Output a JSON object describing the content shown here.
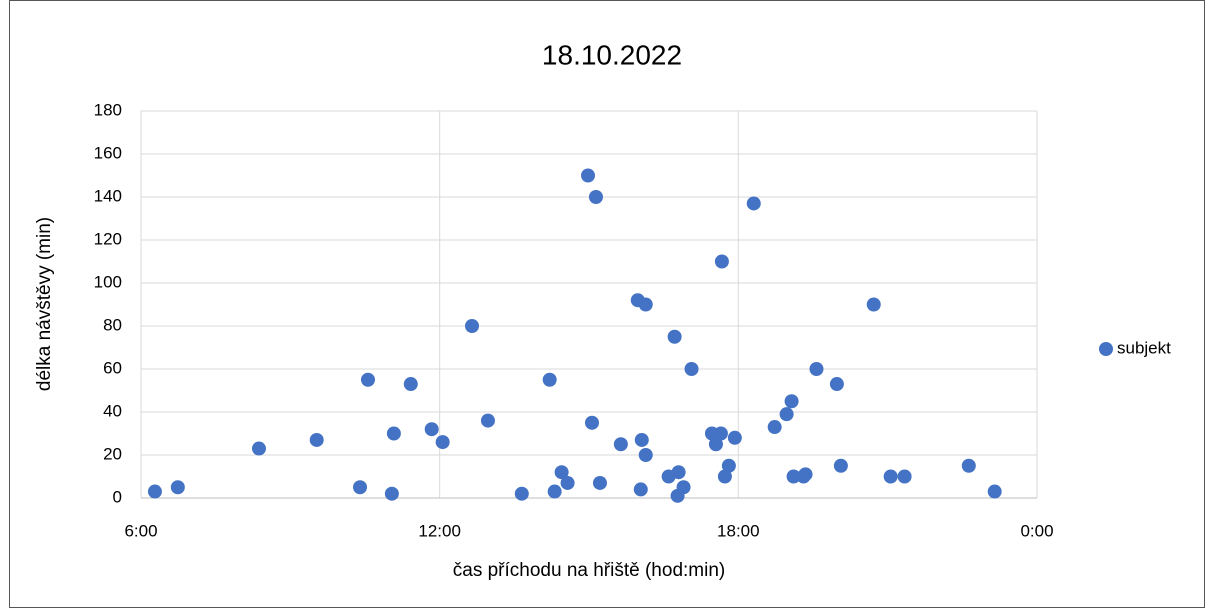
{
  "chart_data": {
    "type": "scatter",
    "title": "18.10.2022",
    "x_label": "čas příchodu na hřiště (hod:min)",
    "y_label": "délka návštěvy (min)",
    "xlim": [
      6,
      24
    ],
    "xticks": [
      {
        "value": 6,
        "label": "6:00"
      },
      {
        "value": 12,
        "label": "12:00"
      },
      {
        "value": 18,
        "label": "18:00"
      },
      {
        "value": 24,
        "label": "0:00"
      }
    ],
    "ylim": [
      0,
      180
    ],
    "yticks": [
      0,
      20,
      40,
      60,
      80,
      100,
      120,
      140,
      160,
      180
    ],
    "grid": true,
    "legend": "right",
    "series": [
      {
        "name": "subjekt",
        "color": "#4472c4",
        "x": [
          6.28,
          6.74,
          8.37,
          9.53,
          10.4,
          10.56,
          11.04,
          11.08,
          11.42,
          11.84,
          12.06,
          12.65,
          12.97,
          13.65,
          14.21,
          14.31,
          14.45,
          14.57,
          14.98,
          15.06,
          15.14,
          15.22,
          15.64,
          15.98,
          16.04,
          16.06,
          16.14,
          16.14,
          16.6,
          16.72,
          16.8,
          16.78,
          16.9,
          17.06,
          17.47,
          17.55,
          17.65,
          17.67,
          17.73,
          17.81,
          17.93,
          18.31,
          18.73,
          18.97,
          19.07,
          19.11,
          19.31,
          19.35,
          19.57,
          19.98,
          20.06,
          20.72,
          21.06,
          21.34,
          22.63,
          23.15
        ],
        "values": [
          3,
          5,
          23,
          27,
          5,
          55,
          2,
          30,
          53,
          32,
          26,
          80,
          36,
          2,
          55,
          3,
          12,
          7,
          150,
          35,
          140,
          7,
          25,
          92,
          4,
          27,
          90,
          20,
          10,
          75,
          12,
          1,
          5,
          60,
          30,
          25,
          30,
          110,
          10,
          15,
          28,
          137,
          33,
          39,
          45,
          10,
          10,
          11,
          60,
          53,
          15,
          90,
          10,
          10,
          15,
          3
        ]
      }
    ]
  }
}
